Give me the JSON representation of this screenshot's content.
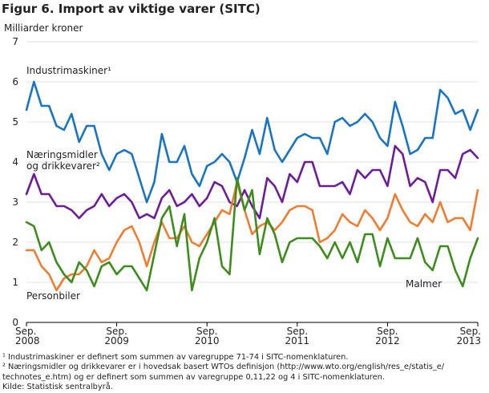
{
  "title": "Figur 6. Import av viktige varer (SITC)",
  "chart_data": {
    "type": "line",
    "ylabel": "Milliarder kroner",
    "ylim": [
      0,
      7
    ],
    "yticks": [
      0,
      1,
      2,
      3,
      4,
      5,
      6,
      7
    ],
    "xlim": [
      0,
      60
    ],
    "x_ticks": [
      {
        "x": 0,
        "label": [
          "Sep.",
          "2008"
        ]
      },
      {
        "x": 12,
        "label": [
          "Sep.",
          "2009"
        ]
      },
      {
        "x": 24,
        "label": [
          "Sep.",
          "2010"
        ]
      },
      {
        "x": 36,
        "label": [
          "Sep.",
          "2011"
        ]
      },
      {
        "x": 48,
        "label": [
          "Sep.",
          "2012"
        ]
      },
      {
        "x": 60,
        "label": [
          "Sep.",
          "2013"
        ]
      }
    ],
    "grid": "horizontal",
    "series": [
      {
        "name": "Industrimaskiner¹",
        "color": "#1a74c2",
        "values": [
          5.3,
          6.0,
          5.4,
          5.4,
          4.9,
          4.8,
          5.2,
          4.5,
          4.9,
          4.9,
          4.2,
          3.8,
          4.2,
          4.3,
          4.2,
          3.6,
          3.0,
          3.5,
          4.7,
          4.0,
          4.0,
          4.4,
          3.7,
          3.4,
          3.9,
          4.0,
          4.2,
          4.0,
          3.5,
          4.1,
          4.8,
          4.2,
          5.1,
          4.3,
          4.0,
          4.3,
          4.6,
          4.7,
          4.6,
          4.6,
          4.2,
          5.0,
          5.1,
          4.9,
          5.0,
          5.2,
          5.0,
          4.6,
          4.4,
          5.5,
          4.9,
          4.2,
          4.3,
          4.6,
          4.6,
          5.8,
          5.6,
          5.2,
          5.3,
          4.8,
          5.3
        ]
      },
      {
        "name": "Næringsmidler og drikkevarer²",
        "color": "#6d1c99",
        "values": [
          3.2,
          3.7,
          3.2,
          3.2,
          2.9,
          2.9,
          2.8,
          2.6,
          2.8,
          2.9,
          3.2,
          2.9,
          3.1,
          3.2,
          3.0,
          2.6,
          2.7,
          2.6,
          3.1,
          3.3,
          2.9,
          3.0,
          3.2,
          2.9,
          3.1,
          3.5,
          3.4,
          3.0,
          2.9,
          3.3,
          2.9,
          2.6,
          3.6,
          3.4,
          3.0,
          3.7,
          3.5,
          4.0,
          4.0,
          3.4,
          3.4,
          3.4,
          3.5,
          3.2,
          3.8,
          3.6,
          3.8,
          3.8,
          3.4,
          4.4,
          4.2,
          3.4,
          3.6,
          3.5,
          3.0,
          3.8,
          3.8,
          3.6,
          4.2,
          4.3,
          4.1
        ]
      },
      {
        "name": "Personbiler",
        "color": "#ee7d31",
        "values": [
          1.8,
          1.8,
          1.4,
          1.2,
          0.8,
          1.1,
          1.2,
          1.2,
          1.4,
          1.8,
          1.5,
          1.6,
          2.0,
          2.3,
          2.4,
          2.0,
          1.4,
          2.0,
          2.5,
          2.1,
          2.1,
          2.4,
          2.0,
          1.9,
          2.2,
          2.5,
          2.8,
          2.7,
          3.5,
          2.8,
          2.2,
          2.4,
          2.5,
          2.3,
          2.5,
          2.8,
          2.9,
          2.9,
          2.8,
          2.0,
          2.1,
          2.3,
          2.7,
          2.5,
          2.4,
          2.8,
          2.6,
          2.3,
          2.6,
          3.2,
          2.8,
          2.5,
          2.4,
          2.7,
          2.5,
          3.0,
          2.5,
          2.6,
          2.6,
          2.3,
          3.3
        ]
      },
      {
        "name": "Malmer",
        "color": "#3e8c1e",
        "values": [
          2.5,
          2.4,
          1.8,
          2.0,
          1.5,
          1.2,
          1.0,
          1.5,
          1.3,
          0.9,
          1.4,
          1.5,
          1.2,
          1.4,
          1.4,
          1.1,
          0.8,
          1.7,
          2.6,
          2.9,
          1.9,
          2.7,
          0.8,
          1.6,
          2.0,
          2.6,
          1.4,
          1.2,
          3.6,
          2.8,
          3.3,
          1.7,
          2.6,
          2.2,
          1.5,
          2.0,
          2.1,
          2.1,
          2.1,
          1.9,
          1.6,
          2.0,
          1.6,
          2.0,
          1.5,
          2.2,
          2.2,
          1.4,
          2.1,
          1.6,
          1.6,
          1.6,
          2.1,
          1.5,
          1.3,
          1.9,
          1.9,
          1.3,
          0.9,
          1.6,
          2.1
        ]
      }
    ],
    "annotations": [
      {
        "text": "Industrimaskiner¹",
        "series": 0
      },
      {
        "text": "Næringsmidler",
        "series": 1
      },
      {
        "text": "og drikkevarer²",
        "series": 1
      },
      {
        "text": "Personbiler",
        "series": 2
      },
      {
        "text": "Malmer",
        "series": 3
      }
    ]
  },
  "footnotes": [
    "¹ Industrimaskiner er definert som summen av varegruppe 71-74 i SITC-nomenklaturen.",
    "² Næringsmidler og drikkevarer er i hovedsak basert WTOs definisjon (http://www.wto.org/english/res_e/statis_e/",
    "technotes_e.htm) og er definert som summen av varegruppe 0,11,22 og 4 i SITC-nomenklaturen.",
    "Kilde: Statistisk sentralbyrå."
  ]
}
